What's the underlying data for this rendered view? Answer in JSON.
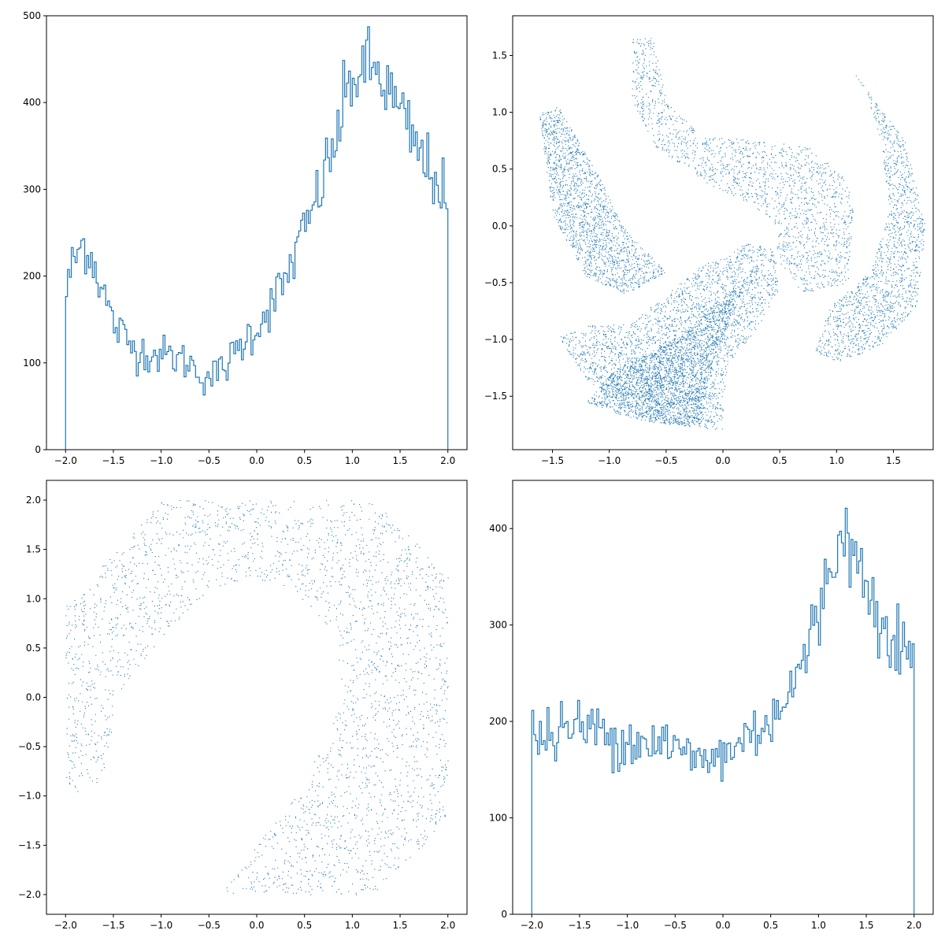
{
  "chart_data": [
    {
      "type": "histogram",
      "style": "step",
      "color": "#1f77b4",
      "xlim": [
        -2.2,
        2.2
      ],
      "ylim": [
        0,
        500
      ],
      "xticks": [
        -2.0,
        -1.5,
        -1.0,
        -0.5,
        0.0,
        0.5,
        1.0,
        1.5,
        2.0
      ],
      "xtick_labels": [
        "−2.0",
        "−1.5",
        "−1.0",
        "−0.5",
        "0.0",
        "0.5",
        "1.0",
        "1.5",
        "2.0"
      ],
      "yticks": [
        0,
        100,
        200,
        300,
        400,
        500
      ],
      "ytick_labels": [
        "0",
        "100",
        "200",
        "300",
        "400",
        "500"
      ],
      "bin_range": [
        -2,
        2
      ],
      "n_bins": 200,
      "profile_x": [
        -2.0,
        -1.95,
        -1.88,
        -1.8,
        -1.7,
        -1.6,
        -1.5,
        -1.3,
        -1.1,
        -0.9,
        -0.7,
        -0.55,
        -0.4,
        -0.3,
        -0.2,
        -0.1,
        0.0,
        0.1,
        0.2,
        0.3,
        0.4,
        0.5,
        0.6,
        0.7,
        0.8,
        0.9,
        1.0,
        1.1,
        1.2,
        1.3,
        1.4,
        1.5,
        1.6,
        1.7,
        1.8,
        1.9,
        1.95,
        2.0
      ],
      "profile_y": [
        175,
        205,
        225,
        240,
        215,
        180,
        145,
        118,
        110,
        108,
        100,
        83,
        88,
        100,
        115,
        130,
        140,
        160,
        175,
        195,
        225,
        250,
        280,
        315,
        345,
        390,
        430,
        435,
        440,
        430,
        410,
        385,
        365,
        340,
        325,
        310,
        295,
        250
      ]
    },
    {
      "type": "scatter",
      "color": "#1f77b4",
      "xlim": [
        -1.85,
        1.85
      ],
      "ylim": [
        -1.97,
        1.85
      ],
      "xticks": [
        -1.5,
        -1.0,
        -0.5,
        0.0,
        0.5,
        1.0,
        1.5
      ],
      "xtick_labels": [
        "−1.5",
        "−1.0",
        "−0.5",
        "0.0",
        "0.5",
        "1.0",
        "1.5"
      ],
      "yticks": [
        -1.5,
        -1.0,
        -0.5,
        0.0,
        0.5,
        1.0,
        1.5
      ],
      "ytick_labels": [
        "−1.5",
        "−1.0",
        "−0.5",
        "0.0",
        "0.5",
        "1.0",
        "1.5"
      ],
      "regions": [
        {
          "name": "left-arm",
          "points": [
            [
              -1.62,
              1.0
            ],
            [
              -1.45,
              1.05
            ],
            [
              -1.1,
              0.45
            ],
            [
              -0.85,
              -0.05
            ],
            [
              -0.5,
              -0.4
            ],
            [
              -0.85,
              -0.6
            ],
            [
              -1.2,
              -0.45
            ],
            [
              -1.5,
              0.1
            ]
          ]
        },
        {
          "name": "top-arm",
          "points": [
            [
              -0.8,
              1.65
            ],
            [
              -0.62,
              1.68
            ],
            [
              -0.5,
              1.1
            ],
            [
              -0.2,
              0.8
            ],
            [
              0.3,
              0.75
            ],
            [
              0.75,
              0.7
            ],
            [
              1.05,
              0.45
            ],
            [
              1.15,
              0.2
            ],
            [
              1.1,
              -0.5
            ],
            [
              0.7,
              -0.6
            ],
            [
              0.45,
              -0.25
            ],
            [
              0.5,
              -0.02
            ],
            [
              0.25,
              0.2
            ],
            [
              -0.1,
              0.35
            ],
            [
              -0.6,
              0.7
            ],
            [
              -0.8,
              1.1
            ]
          ]
        },
        {
          "name": "right-arm",
          "points": [
            [
              1.1,
              1.42
            ],
            [
              1.3,
              1.15
            ],
            [
              1.6,
              0.75
            ],
            [
              1.78,
              0.0
            ],
            [
              1.7,
              -0.7
            ],
            [
              1.4,
              -1.05
            ],
            [
              1.0,
              -1.2
            ],
            [
              0.8,
              -1.1
            ],
            [
              0.95,
              -0.7
            ],
            [
              1.3,
              -0.4
            ],
            [
              1.45,
              0.1
            ],
            [
              1.4,
              0.7
            ],
            [
              1.25,
              1.2
            ]
          ]
        },
        {
          "name": "bottom-lobe",
          "points": [
            [
              -1.45,
              -0.98
            ],
            [
              -1.2,
              -0.88
            ],
            [
              -0.8,
              -0.85
            ],
            [
              -0.5,
              -0.6
            ],
            [
              -0.2,
              -0.35
            ],
            [
              0.05,
              -0.25
            ],
            [
              0.2,
              -0.15
            ],
            [
              0.45,
              -0.2
            ],
            [
              0.5,
              -0.55
            ],
            [
              0.3,
              -0.9
            ],
            [
              0.05,
              -1.2
            ],
            [
              0.0,
              -1.55
            ],
            [
              0.0,
              -1.8
            ],
            [
              -0.4,
              -1.75
            ],
            [
              -0.8,
              -1.65
            ],
            [
              -1.2,
              -1.35
            ]
          ]
        },
        {
          "name": "dense-core",
          "points": [
            [
              -1.2,
              -1.55
            ],
            [
              -0.95,
              -1.25
            ],
            [
              -0.6,
              -1.1
            ],
            [
              -0.3,
              -0.9
            ],
            [
              -0.05,
              -0.65
            ],
            [
              0.2,
              -0.5
            ],
            [
              0.05,
              -0.85
            ],
            [
              -0.1,
              -1.25
            ],
            [
              -0.2,
              -1.75
            ],
            [
              -0.5,
              -1.75
            ],
            [
              -0.85,
              -1.68
            ]
          ]
        }
      ]
    },
    {
      "type": "scatter",
      "color": "#1f77b4",
      "xlim": [
        -2.2,
        2.2
      ],
      "ylim": [
        -2.2,
        2.2
      ],
      "xticks": [
        -2.0,
        -1.5,
        -1.0,
        -0.5,
        0.0,
        0.5,
        1.0,
        1.5,
        2.0
      ],
      "xtick_labels": [
        "−2.0",
        "−1.5",
        "−1.0",
        "−0.5",
        "0.0",
        "0.5",
        "1.0",
        "1.5",
        "2.0"
      ],
      "yticks": [
        -2.0,
        -1.5,
        -1.0,
        -0.5,
        0.0,
        0.5,
        1.0,
        1.5,
        2.0
      ],
      "ytick_labels": [
        "−2.0",
        "−1.5",
        "−1.0",
        "−0.5",
        "0.0",
        "0.5",
        "1.0",
        "1.5",
        "2.0"
      ],
      "outer": [
        [
          -2.0,
          0.97
        ],
        [
          -1.7,
          1.25
        ],
        [
          -1.35,
          1.6
        ],
        [
          -1.05,
          1.93
        ],
        [
          -1.05,
          2.0
        ],
        [
          1.2,
          2.0
        ],
        [
          1.6,
          1.65
        ],
        [
          2.0,
          1.25
        ],
        [
          2.0,
          -1.2
        ],
        [
          1.7,
          -1.55
        ],
        [
          1.2,
          -2.0
        ],
        [
          -0.38,
          -2.0
        ],
        [
          0.3,
          -1.1
        ],
        [
          0.7,
          -0.45
        ],
        [
          0.9,
          0.0
        ],
        [
          0.85,
          0.45
        ],
        [
          0.6,
          0.9
        ],
        [
          0.25,
          1.15
        ],
        [
          -0.15,
          1.2
        ],
        [
          -0.55,
          1.05
        ],
        [
          -0.95,
          0.65
        ],
        [
          -1.3,
          0.25
        ],
        [
          -1.5,
          -0.2
        ],
        [
          -1.55,
          -0.65
        ],
        [
          -1.7,
          -0.95
        ],
        [
          -1.88,
          -1.0
        ],
        [
          -2.0,
          -0.85
        ]
      ]
    },
    {
      "type": "histogram",
      "style": "step",
      "color": "#1f77b4",
      "xlim": [
        -2.2,
        2.2
      ],
      "ylim": [
        0,
        450
      ],
      "xticks": [
        -2.0,
        -1.5,
        -1.0,
        -0.5,
        0.0,
        0.5,
        1.0,
        1.5,
        2.0
      ],
      "xtick_labels": [
        "−2.0",
        "−1.5",
        "−1.0",
        "−0.5",
        "0.0",
        "0.5",
        "1.0",
        "1.5",
        "2.0"
      ],
      "yticks": [
        0,
        100,
        200,
        300,
        400
      ],
      "ytick_labels": [
        "0",
        "100",
        "200",
        "300",
        "400"
      ],
      "bin_range": [
        -2,
        2
      ],
      "n_bins": 200,
      "profile_x": [
        -2.0,
        -1.8,
        -1.5,
        -1.2,
        -1.0,
        -0.8,
        -0.6,
        -0.4,
        -0.2,
        0.0,
        0.2,
        0.4,
        0.6,
        0.8,
        0.9,
        1.0,
        1.1,
        1.2,
        1.25,
        1.3,
        1.4,
        1.5,
        1.6,
        1.7,
        1.8,
        1.9,
        2.0
      ],
      "profile_y": [
        185,
        185,
        195,
        188,
        180,
        180,
        178,
        165,
        160,
        165,
        180,
        195,
        215,
        250,
        280,
        310,
        345,
        385,
        410,
        390,
        365,
        340,
        320,
        305,
        290,
        275,
        255
      ]
    }
  ]
}
